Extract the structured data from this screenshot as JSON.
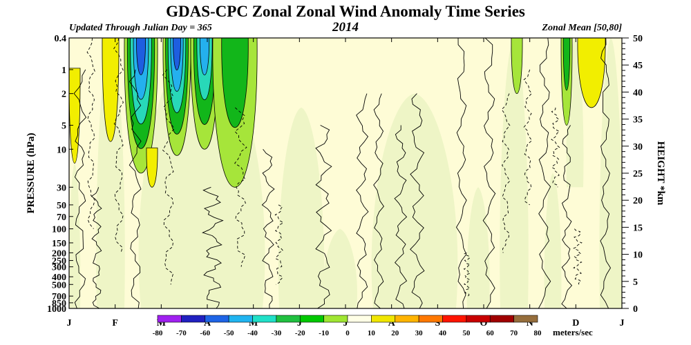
{
  "chart_data": {
    "type": "contour",
    "title": "GDAS-CPC Zonal Zonal Wind Anomaly Time Series",
    "subtitle_left": "Updated Through Julian Day = 365",
    "subtitle_center": "2014",
    "subtitle_right": "Zonal Mean [50,80]",
    "ylabel_left": "PRESSURE (hPa)",
    "ylabel_right": "HEIGHT *km",
    "units": "meters/sec",
    "x_ticks": [
      "J",
      "F",
      "M",
      "A",
      "M",
      "J",
      "J",
      "A",
      "S",
      "O",
      "N",
      "D",
      "J"
    ],
    "pressure_ticks": [
      {
        "label": "0.4",
        "value": 0.4
      },
      {
        "label": "1",
        "value": 1
      },
      {
        "label": "2",
        "value": 2
      },
      {
        "label": "5",
        "value": 5
      },
      {
        "label": "10",
        "value": 10
      },
      {
        "label": "30",
        "value": 30
      },
      {
        "label": "50",
        "value": 50
      },
      {
        "label": "70",
        "value": 70
      },
      {
        "label": "100",
        "value": 100
      },
      {
        "label": "150",
        "value": 150
      },
      {
        "label": "200",
        "value": 200
      },
      {
        "label": "250",
        "value": 250
      },
      {
        "label": "300",
        "value": 300
      },
      {
        "label": "400",
        "value": 400
      },
      {
        "label": "500",
        "value": 500
      },
      {
        "label": "700",
        "value": 700
      },
      {
        "label": "850",
        "value": 850
      },
      {
        "label": "1000",
        "value": 1000
      }
    ],
    "height_ticks": [
      {
        "label": "50",
        "value": 50
      },
      {
        "label": "45",
        "value": 45
      },
      {
        "label": "40",
        "value": 40
      },
      {
        "label": "35",
        "value": 35
      },
      {
        "label": "30",
        "value": 30
      },
      {
        "label": "25",
        "value": 25
      },
      {
        "label": "20",
        "value": 20
      },
      {
        "label": "15",
        "value": 15
      },
      {
        "label": "10",
        "value": 10
      },
      {
        "label": "5",
        "value": 5
      },
      {
        "label": "0",
        "value": 0
      }
    ],
    "colorbar": {
      "labels": [
        "-80",
        "-70",
        "-60",
        "-50",
        "-40",
        "-30",
        "-20",
        "-10",
        "0",
        "10",
        "20",
        "30",
        "40",
        "50",
        "60",
        "70",
        "80"
      ],
      "colors": [
        "#a020f0",
        "#2020c0",
        "#1e64e6",
        "#20b4f0",
        "#20e0c8",
        "#20c040",
        "#00c800",
        "#a0e632",
        "#ffffe6",
        "#ffffe6",
        "#f0e600",
        "#ffb400",
        "#ff7800",
        "#ff1400",
        "#c80000",
        "#a00000",
        "#966e3c"
      ]
    },
    "colors": {
      "weak_pos": "#fefcd6",
      "weak_neg": "#eef5c6",
      "pos_10_20": "#f2ee00",
      "neg_10_20": "#a6e53a",
      "neg_20_30": "#12b61a",
      "neg_30_40": "#28d8b8",
      "neg_40_50": "#24b0ee",
      "neg_50_60": "#1e5ee0"
    },
    "features": [
      {
        "sign": "neg",
        "time": [
          0.1,
          0.16
        ],
        "p_top": 0.4,
        "p_bottom": 20,
        "peak": -60
      },
      {
        "sign": "neg",
        "time": [
          0.17,
          0.22
        ],
        "p_top": 0.4,
        "p_bottom": 12,
        "peak": -60
      },
      {
        "sign": "neg",
        "time": [
          0.22,
          0.27
        ],
        "p_top": 0.4,
        "p_bottom": 10,
        "peak": -50
      },
      {
        "sign": "neg",
        "time": [
          0.26,
          0.34
        ],
        "p_top": 0.4,
        "p_bottom": 30,
        "peak": -30
      },
      {
        "sign": "pos",
        "time": [
          0.0,
          0.02
        ],
        "p_top": 1,
        "p_bottom": 15,
        "peak": 20
      },
      {
        "sign": "pos",
        "time": [
          0.06,
          0.09
        ],
        "p_top": 0.4,
        "p_bottom": 8,
        "peak": 20
      },
      {
        "sign": "pos",
        "time": [
          0.14,
          0.16
        ],
        "p_top": 10,
        "p_bottom": 30,
        "peak": 20
      },
      {
        "sign": "neg",
        "time": [
          0.89,
          0.91
        ],
        "p_top": 0.4,
        "p_bottom": 5,
        "peak": -30
      },
      {
        "sign": "pos",
        "time": [
          0.92,
          0.97
        ],
        "p_top": 0.4,
        "p_bottom": 3,
        "peak": 20
      },
      {
        "sign": "neg",
        "time": [
          0.8,
          0.82
        ],
        "p_top": 0.4,
        "p_bottom": 2,
        "peak": -10
      }
    ]
  }
}
